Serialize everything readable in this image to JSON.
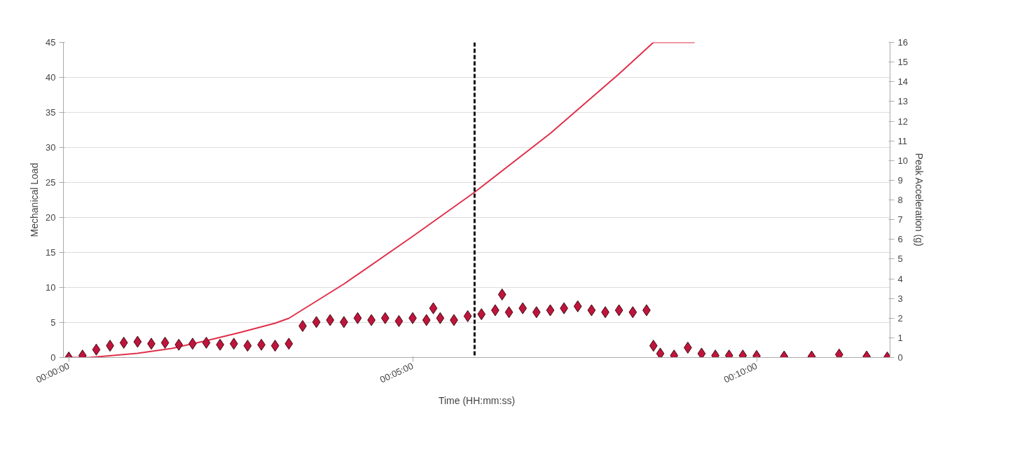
{
  "chart_data": {
    "type": "line",
    "xlabel": "Time (HH:mm:ss)",
    "ylabel": "Mechanical Load",
    "y2label": "Peak Acceleration (g)",
    "xlim": [
      -0.0013,
      0.199
    ],
    "xticks": [
      {
        "value": 0,
        "label": "00:00:00"
      },
      {
        "value": 0.083333,
        "label": "00:05:00"
      },
      {
        "value": 0.166667,
        "label": "00:10:00"
      }
    ],
    "ylim": [
      0,
      45
    ],
    "yticks": [
      0,
      5,
      10,
      15,
      20,
      25,
      30,
      35,
      40,
      45
    ],
    "y2lim": [
      0,
      16
    ],
    "y2ticks": [
      0,
      1,
      2,
      3,
      4,
      5,
      6,
      7,
      8,
      9,
      10,
      11,
      12,
      13,
      14,
      15,
      16
    ],
    "grid": "y",
    "ref_lines": [
      {
        "axis": "x",
        "value": 0.09833,
        "color": "#111111",
        "line_style": "dashed"
      }
    ],
    "series": [
      {
        "axis": "y",
        "color": "#e0304a",
        "marker": "none",
        "line_style": "solid",
        "x": [
          0,
          0.005,
          0.01667,
          0.025,
          0.03333,
          0.04167,
          0.05,
          0.05333,
          0.06667,
          0.08333,
          0.09833,
          0.11667,
          0.13333,
          0.14167,
          0.15167
        ],
        "values": [
          0,
          0,
          0.6,
          1.3,
          2.4,
          3.6,
          4.9,
          5.6,
          10.5,
          17.3,
          23.6,
          32.0,
          40.5,
          45,
          45
        ]
      },
      {
        "type": "scatter",
        "axis": "y2",
        "color": "#c0143c",
        "marker": "diamond",
        "x": [
          0,
          0.00333,
          0.00667,
          0.01,
          0.01333,
          0.01667,
          0.02,
          0.02333,
          0.02667,
          0.03,
          0.03333,
          0.03667,
          0.04,
          0.04333,
          0.04667,
          0.05,
          0.05333,
          0.05667,
          0.06,
          0.06333,
          0.06667,
          0.07,
          0.07333,
          0.07667,
          0.08,
          0.08333,
          0.08667,
          0.08833,
          0.09,
          0.09333,
          0.09667,
          0.1,
          0.10333,
          0.105,
          0.10667,
          0.11,
          0.11333,
          0.11667,
          0.12,
          0.12333,
          0.12667,
          0.13,
          0.13333,
          0.13667,
          0.14,
          0.14167,
          0.14333,
          0.14667,
          0.15,
          0.15333,
          0.15667,
          0.16,
          0.16333,
          0.16667,
          0.17333,
          0.18,
          0.18667,
          0.19333,
          0.19833
        ],
        "values": [
          0,
          0.1,
          0.4,
          0.6,
          0.75,
          0.8,
          0.7,
          0.75,
          0.65,
          0.7,
          0.75,
          0.65,
          0.7,
          0.6,
          0.65,
          0.6,
          0.7,
          1.6,
          1.8,
          1.9,
          1.8,
          2.0,
          1.9,
          2.0,
          1.85,
          2.0,
          1.9,
          2.5,
          2.0,
          1.9,
          2.1,
          2.2,
          2.4,
          3.2,
          2.3,
          2.5,
          2.3,
          2.4,
          2.5,
          2.6,
          2.4,
          2.3,
          2.4,
          2.3,
          2.4,
          0.6,
          0.2,
          0.1,
          0.5,
          0.2,
          0.1,
          0.1,
          0.1,
          0.08,
          0.05,
          0.05,
          0.15,
          0.05,
          0
        ]
      }
    ]
  }
}
